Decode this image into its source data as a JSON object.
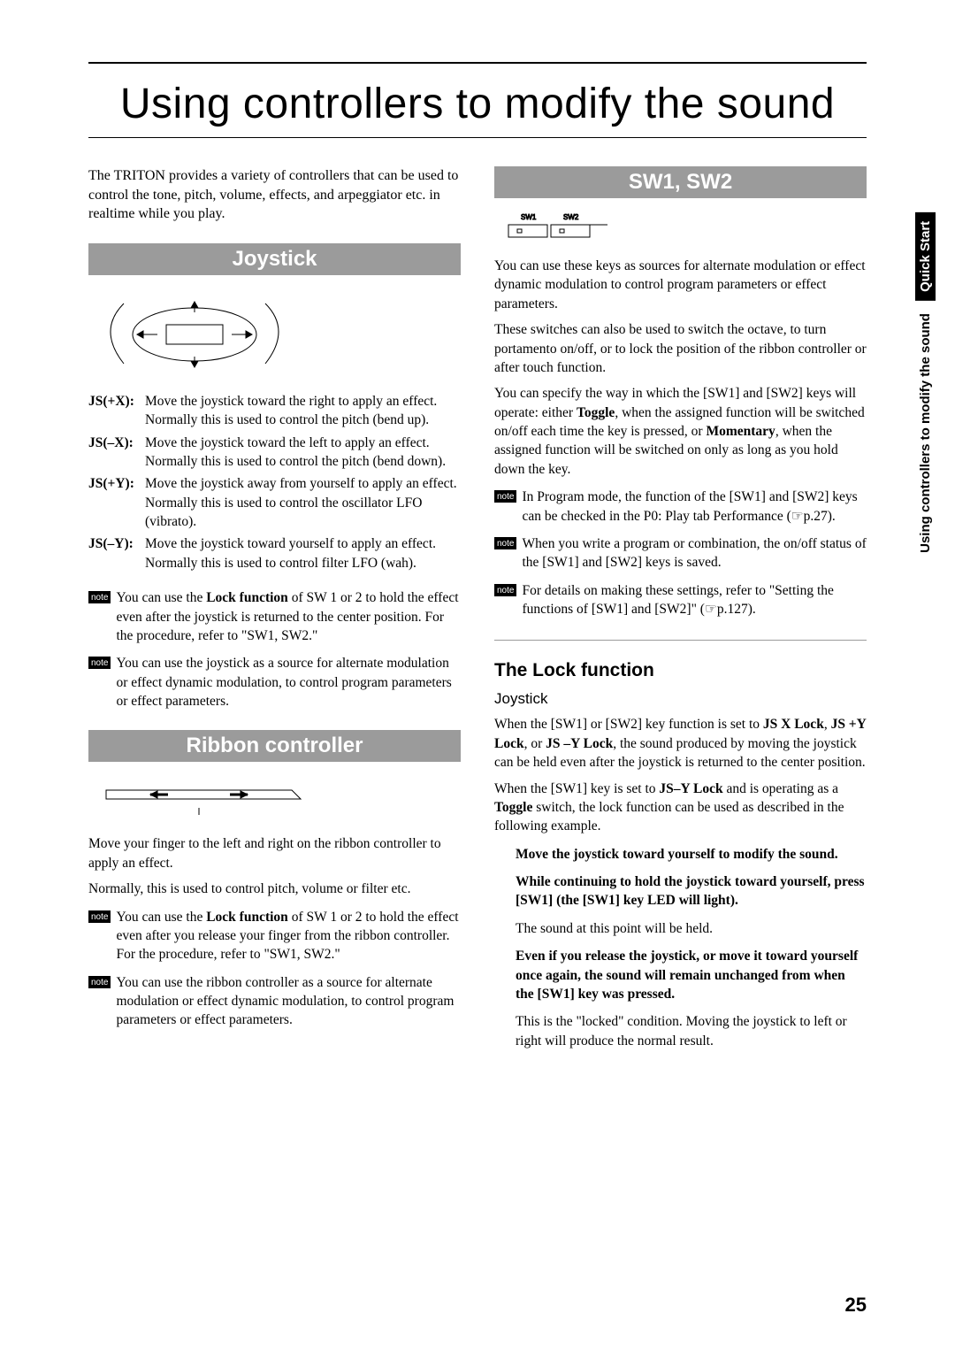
{
  "page_title": "Using controllers to modify the sound",
  "intro": "The TRITON provides a variety of controllers that can be used to control the tone, pitch, volume, effects, and arpeggiator etc. in realtime while you play.",
  "joystick": {
    "heading": "Joystick",
    "items": [
      {
        "term": "JS(+X):",
        "def": "Move the joystick toward the right to apply an effect. Normally this is used to control the pitch (bend up)."
      },
      {
        "term": "JS(–X):",
        "def": "Move the joystick toward the left to apply an effect. Normally this is used to control the pitch (bend down)."
      },
      {
        "term": "JS(+Y):",
        "def": "Move the joystick away from yourself to apply an effect. Normally this is used to control the oscillator LFO (vibrato)."
      },
      {
        "term": "JS(–Y):",
        "def": "Move the joystick toward yourself to apply an effect. Normally this is used to control filter LFO (wah)."
      }
    ],
    "note1": "You can use the <b>Lock function</b> of SW 1 or 2 to hold the effect even after the joystick is returned to the center position. For the procedure, refer to \"SW1, SW2.\"",
    "note2": "You can use the joystick as a source for alternate modulation or effect dynamic modulation, to control program parameters or effect parameters."
  },
  "ribbon": {
    "heading": "Ribbon controller",
    "p1": "Move your finger to the left and right on the ribbon controller to apply an effect.",
    "p2": "Normally, this is used to control pitch, volume or filter etc.",
    "note1": "You can use the <b>Lock function</b> of SW 1 or 2 to hold the effect even after you release your finger from the ribbon controller. For the procedure, refer to \"SW1, SW2.\"",
    "note2": "You can use the ribbon controller as a source for alternate modulation or effect dynamic modulation, to control program parameters or effect parameters."
  },
  "sw": {
    "heading": "SW1, SW2",
    "p1": "You can use these keys as sources for alternate modulation or effect dynamic modulation to control program parameters or effect parameters.",
    "p2": "These switches can also be used to switch the octave, to turn portamento on/off, or to lock the position of the ribbon controller or after touch function.",
    "p3": "You can specify the way in which the [SW1] and [SW2] keys will operate: either <b>Toggle</b>, when the assigned function will be switched on/off each time the key is pressed, or <b>Momentary</b>, when the assigned function will be switched on only as long as you hold down the key.",
    "note1": "In Program mode, the function of the [SW1] and [SW2] keys can be checked in the P0: Play tab Performance (☞p.27).",
    "note2": "When you write a program or combination, the on/off status of the [SW1] and [SW2] keys is saved.",
    "note3": "For details on making these settings, refer to \"Setting the functions of [SW1] and [SW2]\" (☞p.127)."
  },
  "lock": {
    "heading": "The Lock function",
    "sub": "Joystick",
    "p1": "When the [SW1] or [SW2] key function is set to <b>JS X Lock</b>, <b>JS +Y Lock</b>, or <b>JS –Y Lock</b>, the sound produced by moving the joystick can be held even after the joystick is returned to the center position.",
    "p2": "When the [SW1] key is set to <b>JS–Y Lock</b> and is operating as a <b>Toggle</b> switch, the lock function can be used as described in the following example.",
    "i1": "<b>Move the joystick toward yourself to modify the sound.</b>",
    "i2": "<b>While continuing to hold the joystick toward yourself, press [SW1] (the [SW1] key LED will light).</b>",
    "i3": "The sound at this point will be held.",
    "i4": "<b>Even if you release the joystick, or move it toward yourself once again, the sound will remain unchanged from when the [SW1] key was pressed.</b>",
    "i5": "This is the \"locked\" condition. Moving the joystick to left or right will produce the normal result."
  },
  "side": {
    "qs": "Quick Start",
    "section": "Using controllers to modify the sound"
  },
  "page_number": "25",
  "note_label": "note",
  "style": {
    "accent_bg": "#9b9b9b",
    "accent_fg": "#ffffff",
    "body_fontsize": 15.5,
    "title_fontsize": 48,
    "section_fontsize": 24
  }
}
